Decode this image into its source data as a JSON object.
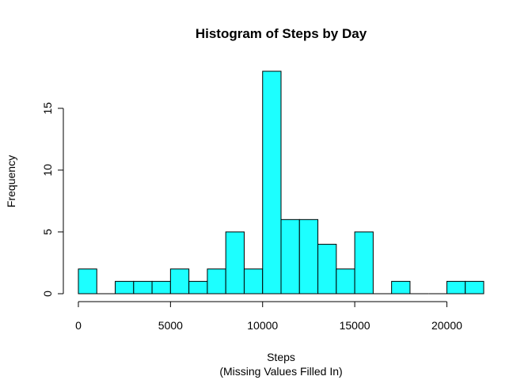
{
  "chart_data": {
    "type": "bar",
    "title": "Histogram of Steps by Day",
    "xlabel": "Steps",
    "xlabel2": "(Missing Values Filled In)",
    "ylabel": "Frequency",
    "bin_width": 1000,
    "bins_start": [
      0,
      1000,
      2000,
      3000,
      4000,
      5000,
      6000,
      7000,
      8000,
      9000,
      10000,
      11000,
      12000,
      13000,
      14000,
      15000,
      16000,
      17000,
      18000,
      19000,
      20000,
      21000
    ],
    "values": [
      2,
      0,
      1,
      1,
      1,
      2,
      1,
      2,
      5,
      2,
      18,
      6,
      6,
      4,
      2,
      5,
      0,
      1,
      0,
      0,
      1,
      1
    ],
    "xlim": [
      0,
      22000
    ],
    "ylim": [
      0,
      18
    ],
    "x_ticks": [
      0,
      5000,
      10000,
      15000,
      20000
    ],
    "x_tick_labels": [
      "0",
      "5000",
      "10000",
      "15000",
      "20000"
    ],
    "y_ticks": [
      0,
      5,
      10,
      15
    ],
    "y_tick_labels": [
      "0",
      "5",
      "10",
      "15"
    ],
    "bar_color": "#1cffff",
    "grid": false
  }
}
